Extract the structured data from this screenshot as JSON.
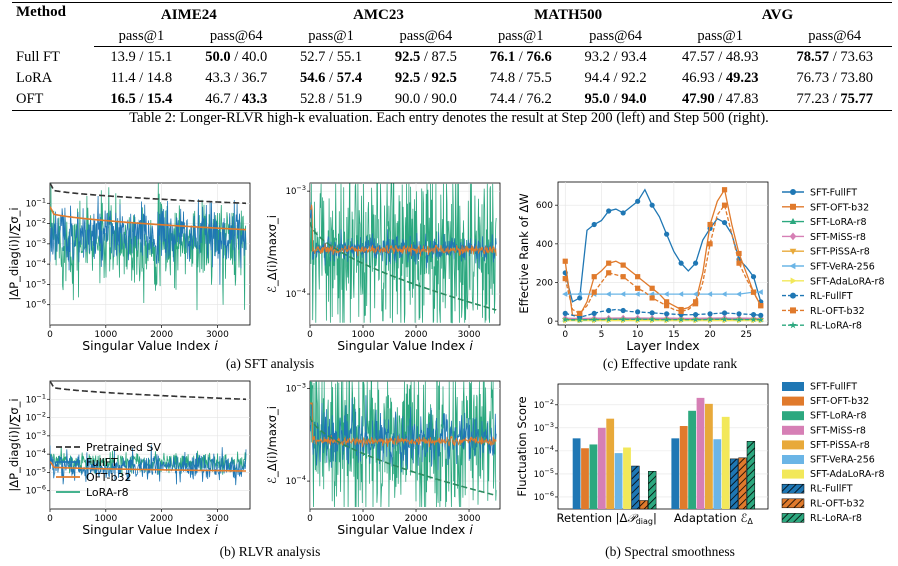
{
  "table": {
    "method_header": "Method",
    "groups": [
      "AIME24",
      "AMC23",
      "MATH500",
      "AVG"
    ],
    "subheaders": [
      "pass@1",
      "pass@64",
      "pass@1",
      "pass@64",
      "pass@1",
      "pass@64",
      "pass@1",
      "pass@64"
    ],
    "rows": [
      {
        "method": "Full FT",
        "cells": [
          {
            "a": "13.9",
            "b": "15.1",
            "ab": false,
            "bb": false
          },
          {
            "a": "50.0",
            "b": "40.0",
            "ab": true,
            "bb": false
          },
          {
            "a": "52.7",
            "b": "55.1",
            "ab": false,
            "bb": false
          },
          {
            "a": "92.5",
            "b": "87.5",
            "ab": true,
            "bb": false
          },
          {
            "a": "76.1",
            "b": "76.6",
            "ab": true,
            "bb": true
          },
          {
            "a": "93.2",
            "b": "93.4",
            "ab": false,
            "bb": false
          },
          {
            "a": "47.57",
            "b": "48.93",
            "ab": false,
            "bb": false
          },
          {
            "a": "78.57",
            "b": "73.63",
            "ab": true,
            "bb": false
          }
        ]
      },
      {
        "method": "LoRA",
        "cells": [
          {
            "a": "11.4",
            "b": "14.8",
            "ab": false,
            "bb": false
          },
          {
            "a": "43.3",
            "b": "36.7",
            "ab": false,
            "bb": false
          },
          {
            "a": "54.6",
            "b": "57.4",
            "ab": true,
            "bb": true
          },
          {
            "a": "92.5",
            "b": "92.5",
            "ab": true,
            "bb": true
          },
          {
            "a": "74.8",
            "b": "75.5",
            "ab": false,
            "bb": false
          },
          {
            "a": "94.4",
            "b": "92.2",
            "ab": false,
            "bb": false
          },
          {
            "a": "46.93",
            "b": "49.23",
            "ab": false,
            "bb": true
          },
          {
            "a": "76.73",
            "b": "73.80",
            "ab": false,
            "bb": false
          }
        ]
      },
      {
        "method": "OFT",
        "cells": [
          {
            "a": "16.5",
            "b": "15.4",
            "ab": true,
            "bb": true
          },
          {
            "a": "46.7",
            "b": "43.3",
            "ab": false,
            "bb": true
          },
          {
            "a": "52.8",
            "b": "51.9",
            "ab": false,
            "bb": false
          },
          {
            "a": "90.0",
            "b": "90.0",
            "ab": false,
            "bb": false
          },
          {
            "a": "74.4",
            "b": "76.2",
            "ab": false,
            "bb": false
          },
          {
            "a": "95.0",
            "b": "94.0",
            "ab": true,
            "bb": true
          },
          {
            "a": "47.90",
            "b": "47.83",
            "ab": true,
            "bb": false
          },
          {
            "a": "77.23",
            "b": "75.77",
            "ab": false,
            "bb": true
          }
        ]
      }
    ],
    "caption": "Table 2: Longer-RLVR high-k evaluation. Each entry denotes the result at Step 200 (left) and Step 500 (right)."
  },
  "colors": {
    "pretrained": "#333333",
    "fullft": "#1f77b4",
    "oft": "#e07a2c",
    "lora": "#2ca87f",
    "miss": "#d67fb5",
    "pissa": "#e8a93a",
    "vera": "#6bb5e6",
    "adalora": "#f2e85a"
  },
  "captions": {
    "a": "(a) SFT analysis",
    "b_rlvr": "(b) RLVR analysis",
    "c": "(c) Effective update rank",
    "b_smooth": "(b) Spectral smoothness"
  },
  "chart_data": [
    {
      "id": "sft-retention",
      "type": "line",
      "xlabel": "Singular Value Index i",
      "ylabel": "|ΔP_diag(i)|/∑σ_i",
      "yscale": "log",
      "xlim": [
        0,
        3584
      ],
      "ylim": [
        1e-07,
        1
      ],
      "xticks": [
        0,
        1000,
        2000,
        3000
      ],
      "yticks": [
        "10^-6",
        "10^-5",
        "10^-4",
        "10^-3",
        "10^-2",
        "10^-1"
      ],
      "series": [
        {
          "name": "Pretrained SV",
          "kind": "pretrained",
          "start": 0.5,
          "end": 0.1
        },
        {
          "name": "FullFT",
          "kind": "fullft",
          "center": 0.0025,
          "spread": 1.6
        },
        {
          "name": "OFT-b32",
          "kind": "oft",
          "start": 0.035,
          "end": 0.005
        },
        {
          "name": "LoRA-r8",
          "kind": "lora",
          "center": 0.0012,
          "spread": 2.4
        }
      ]
    },
    {
      "id": "sft-adaptation",
      "type": "line",
      "xlabel": "Singular Value Index i",
      "ylabel": "ℰ_Δ(i)/maxσ_i",
      "yscale": "log",
      "xlim": [
        0,
        3584
      ],
      "ylim": [
        5e-05,
        0.0012
      ],
      "xticks": [
        0,
        1000,
        2000,
        3000
      ],
      "yticks": [
        "10^-3",
        "10^-4"
      ],
      "series": [
        {
          "name": "FullFT",
          "kind": "fullft",
          "center": 0.00027,
          "spread": 0.15
        },
        {
          "name": "OFT-b32",
          "kind": "oft",
          "center": 0.00027,
          "spread": 0.05
        },
        {
          "name": "LoRA-r8",
          "kind": "lora",
          "center": 0.00027,
          "spread": 1.0
        },
        {
          "name": "Pretrained SV",
          "kind": "pretrained-dash",
          "start": 0.0005,
          "end": 7e-05
        }
      ]
    },
    {
      "id": "effective-rank",
      "type": "line",
      "xlabel": "Layer Index",
      "ylabel": "Effective Rank of ΔW",
      "xlim": [
        -1,
        28
      ],
      "ylim": [
        -20,
        720
      ],
      "xticks": [
        0,
        5,
        10,
        15,
        20,
        25
      ],
      "yticks": [
        0,
        200,
        400,
        600
      ],
      "legend": "right",
      "series": [
        {
          "name": "SFT-FullFT",
          "kind": "fullft",
          "dash": false,
          "marker": "circle",
          "values": [
            250,
            100,
            120,
            470,
            500,
            520,
            570,
            580,
            560,
            590,
            620,
            680,
            600,
            540,
            450,
            360,
            300,
            260,
            300,
            420,
            480,
            530,
            510,
            450,
            320,
            280,
            230,
            100
          ]
        },
        {
          "name": "SFT-OFT-b32",
          "kind": "oft",
          "dash": false,
          "marker": "square",
          "values": [
            310,
            30,
            30,
            100,
            230,
            260,
            300,
            310,
            290,
            260,
            230,
            200,
            170,
            140,
            100,
            80,
            60,
            70,
            100,
            250,
            500,
            620,
            680,
            500,
            350,
            250,
            150,
            80
          ]
        },
        {
          "name": "SFT-LoRA-r8",
          "kind": "lora",
          "dash": false,
          "marker": "triangle-up",
          "values": [
            10,
            8,
            8,
            9,
            10,
            10,
            11,
            12,
            12,
            12,
            12,
            12,
            12,
            11,
            11,
            11,
            10,
            10,
            10,
            10,
            11,
            12,
            12,
            12,
            11,
            11,
            10,
            9
          ]
        },
        {
          "name": "SFT-MiSS-r8",
          "kind": "miss",
          "dash": false,
          "marker": "diamond",
          "values": [
            15,
            14,
            14,
            14,
            15,
            15,
            15,
            16,
            16,
            16,
            16,
            16,
            15,
            15,
            15,
            15,
            14,
            14,
            14,
            15,
            15,
            16,
            16,
            15,
            15,
            15,
            14,
            14
          ]
        },
        {
          "name": "SFT-PiSSA-r8",
          "kind": "pissa",
          "dash": false,
          "marker": "triangle-down",
          "values": [
            5,
            5,
            5,
            5,
            5,
            6,
            6,
            6,
            6,
            6,
            6,
            6,
            6,
            6,
            6,
            6,
            6,
            6,
            6,
            6,
            6,
            6,
            6,
            6,
            6,
            6,
            6,
            5
          ]
        },
        {
          "name": "SFT-VeRA-256",
          "kind": "vera",
          "dash": false,
          "marker": "triangle-left",
          "values": [
            140,
            140,
            140,
            140,
            140,
            140,
            140,
            140,
            140,
            140,
            140,
            140,
            140,
            140,
            140,
            140,
            140,
            140,
            140,
            140,
            140,
            140,
            140,
            140,
            140,
            145,
            150,
            150
          ]
        },
        {
          "name": "SFT-AdaLoRA-r8",
          "kind": "adalora",
          "dash": false,
          "marker": "triangle-right",
          "values": [
            3,
            3,
            3,
            3,
            3,
            3,
            3,
            3,
            3,
            3,
            3,
            3,
            3,
            3,
            3,
            3,
            3,
            3,
            3,
            3,
            3,
            3,
            3,
            3,
            3,
            3,
            3,
            3
          ]
        },
        {
          "name": "RL-FullFT",
          "kind": "fullft",
          "dash": true,
          "marker": "circle",
          "values": [
            40,
            30,
            20,
            30,
            40,
            50,
            55,
            60,
            55,
            50,
            48,
            45,
            43,
            40,
            38,
            36,
            34,
            33,
            34,
            36,
            38,
            40,
            42,
            40,
            38,
            36,
            34,
            30
          ]
        },
        {
          "name": "RL-OFT-b32",
          "kind": "oft",
          "dash": true,
          "marker": "square",
          "values": [
            220,
            60,
            40,
            80,
            150,
            200,
            250,
            240,
            230,
            200,
            170,
            150,
            120,
            100,
            80,
            60,
            50,
            60,
            90,
            200,
            400,
            550,
            600,
            450,
            300,
            220,
            150,
            80
          ]
        },
        {
          "name": "RL-LoRA-r8",
          "kind": "lora",
          "dash": true,
          "marker": "star",
          "values": [
            8,
            6,
            6,
            7,
            8,
            8,
            9,
            9,
            9,
            9,
            9,
            9,
            9,
            8,
            8,
            8,
            8,
            8,
            8,
            8,
            9,
            9,
            9,
            9,
            8,
            8,
            8,
            7
          ]
        }
      ]
    },
    {
      "id": "rlvr-retention",
      "type": "line",
      "xlabel": "Singular Value Index i",
      "ylabel": "|ΔP_diag(i)|/∑σ_i",
      "yscale": "log",
      "xlim": [
        0,
        3584
      ],
      "ylim": [
        1e-07,
        1
      ],
      "xticks": [
        0,
        1000,
        2000,
        3000
      ],
      "yticks": [
        "10^-6",
        "10^-5",
        "10^-4",
        "10^-3",
        "10^-2",
        "10^-1"
      ],
      "legend": "lower-left",
      "series": [
        {
          "name": "Pretrained SV",
          "kind": "pretrained",
          "start": 0.5,
          "end": 0.1
        },
        {
          "name": "FullFT",
          "kind": "fullft",
          "center": 2e-05,
          "spread": 0.8
        },
        {
          "name": "OFT-b32",
          "kind": "oft",
          "start": 2e-05,
          "end": 1.2e-05
        },
        {
          "name": "LoRA-r8",
          "kind": "lora",
          "center": 3.5e-05,
          "spread": 0.6
        }
      ]
    },
    {
      "id": "rlvr-adaptation",
      "type": "line",
      "xlabel": "Singular Value Index i",
      "ylabel": "ℰ_Δ(i)/maxσ_i",
      "yscale": "log",
      "xlim": [
        0,
        3584
      ],
      "ylim": [
        5e-05,
        0.0012
      ],
      "xticks": [
        0,
        1000,
        2000,
        3000
      ],
      "yticks": [
        "10^-3",
        "10^-4"
      ],
      "series": [
        {
          "name": "FullFT",
          "kind": "fullft",
          "center": 0.00028,
          "spread": 0.3
        },
        {
          "name": "OFT-b32",
          "kind": "oft",
          "center": 0.00027,
          "spread": 0.05
        },
        {
          "name": "LoRA-r8",
          "kind": "lora",
          "center": 0.00027,
          "spread": 1.0
        },
        {
          "name": "Pretrained SV",
          "kind": "pretrained-dash",
          "start": 0.0005,
          "end": 7e-05
        }
      ]
    },
    {
      "id": "spectral-smoothness",
      "type": "bar",
      "ylabel": "Fluctuation Score",
      "yscale": "log",
      "ylim": [
        3e-07,
        0.08
      ],
      "yticks": [
        "10^-6",
        "10^-5",
        "10^-4",
        "10^-3",
        "10^-2"
      ],
      "categories": [
        "Retention |ΔP_diag|",
        "Adaptation ℰ_Δ"
      ],
      "legend": "right",
      "series": [
        {
          "name": "SFT-FullFT",
          "kind": "fullft",
          "hatch": false,
          "values": [
            0.00035,
            0.00035
          ]
        },
        {
          "name": "SFT-OFT-b32",
          "kind": "oft",
          "hatch": false,
          "values": [
            0.00013,
            0.0012
          ]
        },
        {
          "name": "SFT-LoRA-r8",
          "kind": "lora",
          "hatch": false,
          "values": [
            0.00019,
            0.0055
          ]
        },
        {
          "name": "SFT-MiSS-r8",
          "kind": "miss",
          "hatch": false,
          "values": [
            0.001,
            0.02
          ]
        },
        {
          "name": "SFT-PiSSA-r8",
          "kind": "pissa",
          "hatch": false,
          "values": [
            0.0025,
            0.011
          ]
        },
        {
          "name": "SFT-VeRA-256",
          "kind": "vera",
          "hatch": false,
          "values": [
            8e-05,
            0.00032
          ]
        },
        {
          "name": "SFT-AdaLoRA-r8",
          "kind": "adalora",
          "hatch": false,
          "values": [
            0.00014,
            0.003
          ]
        },
        {
          "name": "RL-FullFT",
          "kind": "fullft",
          "hatch": true,
          "values": [
            2.2e-05,
            4.5e-05
          ]
        },
        {
          "name": "RL-OFT-b32",
          "kind": "oft",
          "hatch": true,
          "values": [
            7e-07,
            5e-05
          ]
        },
        {
          "name": "RL-LoRA-r8",
          "kind": "lora",
          "hatch": true,
          "values": [
            1.3e-05,
            0.00026
          ]
        }
      ]
    }
  ]
}
